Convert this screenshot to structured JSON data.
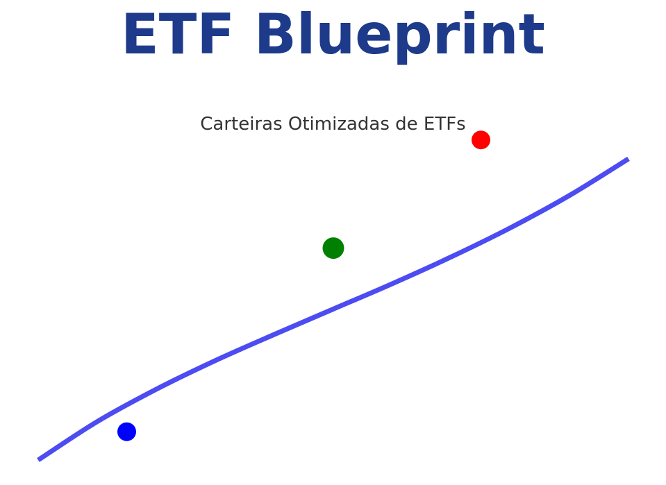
{
  "title": "ETF Blueprint",
  "subtitle": "Carteiras Otimizadas de ETFs",
  "colors": {
    "title": "#1e3a8a",
    "subtitle": "#333333",
    "curve": "#4c4cf2"
  },
  "chart_data": {
    "type": "scatter",
    "grid": false,
    "axes_visible": false,
    "xlim": [
      0,
      100
    ],
    "ylim": [
      0,
      100
    ],
    "series": [
      {
        "kind": "line",
        "color": "#4c4cf2",
        "x": [
          0,
          10,
          20,
          30,
          40,
          50,
          60,
          70,
          80,
          90,
          100
        ],
        "y": [
          0,
          10.6,
          19.5,
          27.4,
          34.6,
          41.6,
          48.6,
          56.0,
          64.0,
          72.9,
          83.0
        ]
      },
      {
        "kind": "point",
        "color": "#0000ff",
        "x": [
          15
        ],
        "y": [
          7.8
        ]
      },
      {
        "kind": "point",
        "color": "#008000",
        "x": [
          50
        ],
        "y": [
          58.4
        ]
      },
      {
        "kind": "point",
        "color": "#ff0000",
        "x": [
          75
        ],
        "y": [
          88.2
        ]
      }
    ]
  }
}
